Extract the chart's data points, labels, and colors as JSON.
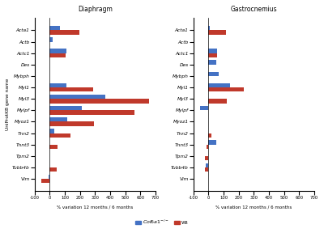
{
  "genes": [
    "Acta1",
    "Actb",
    "Actc1",
    "Des",
    "Mybph",
    "Myl1",
    "Myl3",
    "Mylpf",
    "Myoz1",
    "Tnn2",
    "Tnnt3",
    "Tpm2",
    "Tubb4b",
    "Vim"
  ],
  "diaphragm_blue": [
    70,
    20,
    110,
    0,
    0,
    110,
    370,
    210,
    115,
    30,
    0,
    0,
    0,
    -10
  ],
  "diaphragm_red": [
    195,
    0,
    105,
    0,
    0,
    285,
    660,
    560,
    295,
    140,
    50,
    0,
    45,
    -55
  ],
  "gastrocnemius_blue": [
    10,
    0,
    55,
    50,
    65,
    140,
    0,
    -55,
    0,
    0,
    50,
    0,
    -20,
    0
  ],
  "gastrocnemius_red": [
    115,
    0,
    55,
    0,
    0,
    235,
    120,
    0,
    0,
    20,
    -15,
    -25,
    -25,
    0
  ],
  "xlim": [
    -100,
    700
  ],
  "xticks": [
    -100,
    0,
    100,
    200,
    300,
    400,
    500,
    600,
    700
  ],
  "xlabel": "% variation 12 months / 6 months",
  "ylabel": "UniProtKB gene name",
  "title_diaphragm": "Diaphragm",
  "title_gastrocnemius": "Gastrocnemius",
  "blue_color": "#4472C4",
  "red_color": "#C0392B",
  "bar_height": 0.38
}
